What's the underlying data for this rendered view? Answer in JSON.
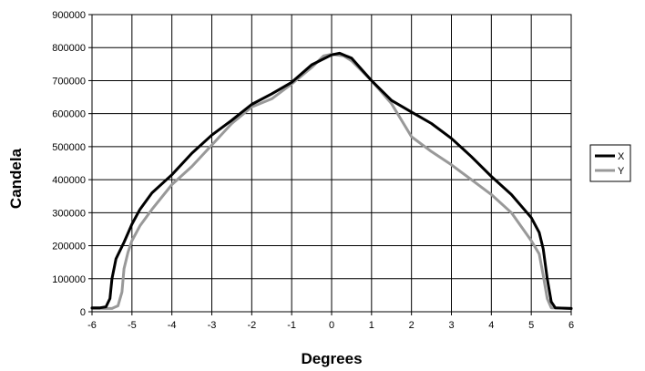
{
  "chart_data": {
    "type": "line",
    "xlabel": "Degrees",
    "ylabel": "Candela",
    "xlim": [
      -6,
      6
    ],
    "ylim": [
      0,
      900000
    ],
    "xticks": [
      "-6",
      "-5",
      "-4",
      "-3",
      "-2",
      "-1",
      "0",
      "1",
      "2",
      "3",
      "4",
      "5",
      "6"
    ],
    "yticks": [
      "0",
      "100000",
      "200000",
      "300000",
      "400000",
      "500000",
      "600000",
      "700000",
      "800000",
      "900000"
    ],
    "grid": true,
    "legend_position": "right",
    "series": [
      {
        "name": "X",
        "color": "#000000",
        "points": [
          [
            -6.0,
            12000
          ],
          [
            -5.8,
            12000
          ],
          [
            -5.65,
            15000
          ],
          [
            -5.55,
            40000
          ],
          [
            -5.5,
            100000
          ],
          [
            -5.4,
            160000
          ],
          [
            -5.2,
            210000
          ],
          [
            -5.0,
            265000
          ],
          [
            -4.8,
            310000
          ],
          [
            -4.5,
            360000
          ],
          [
            -4.0,
            415000
          ],
          [
            -3.5,
            480000
          ],
          [
            -3.0,
            535000
          ],
          [
            -2.5,
            580000
          ],
          [
            -2.0,
            628000
          ],
          [
            -1.5,
            660000
          ],
          [
            -1.0,
            695000
          ],
          [
            -0.5,
            748000
          ],
          [
            0.0,
            778000
          ],
          [
            0.2,
            783000
          ],
          [
            0.5,
            768000
          ],
          [
            1.0,
            700000
          ],
          [
            1.5,
            640000
          ],
          [
            2.0,
            605000
          ],
          [
            2.5,
            570000
          ],
          [
            3.0,
            525000
          ],
          [
            3.5,
            470000
          ],
          [
            4.0,
            410000
          ],
          [
            4.5,
            355000
          ],
          [
            5.0,
            285000
          ],
          [
            5.2,
            240000
          ],
          [
            5.3,
            190000
          ],
          [
            5.4,
            100000
          ],
          [
            5.5,
            30000
          ],
          [
            5.6,
            12000
          ],
          [
            6.0,
            10000
          ]
        ]
      },
      {
        "name": "Y",
        "color": "#999999",
        "points": [
          [
            -6.0,
            10000
          ],
          [
            -5.5,
            10000
          ],
          [
            -5.35,
            18000
          ],
          [
            -5.25,
            60000
          ],
          [
            -5.2,
            130000
          ],
          [
            -5.1,
            180000
          ],
          [
            -5.0,
            215000
          ],
          [
            -4.8,
            260000
          ],
          [
            -4.5,
            310000
          ],
          [
            -4.0,
            385000
          ],
          [
            -3.5,
            440000
          ],
          [
            -3.0,
            505000
          ],
          [
            -2.5,
            570000
          ],
          [
            -2.0,
            620000
          ],
          [
            -1.5,
            645000
          ],
          [
            -1.0,
            690000
          ],
          [
            -0.5,
            740000
          ],
          [
            -0.2,
            775000
          ],
          [
            0.0,
            780000
          ],
          [
            0.3,
            775000
          ],
          [
            0.5,
            760000
          ],
          [
            1.0,
            700000
          ],
          [
            1.5,
            630000
          ],
          [
            2.0,
            530000
          ],
          [
            2.5,
            485000
          ],
          [
            3.0,
            445000
          ],
          [
            3.5,
            400000
          ],
          [
            4.0,
            355000
          ],
          [
            4.5,
            300000
          ],
          [
            5.0,
            215000
          ],
          [
            5.2,
            175000
          ],
          [
            5.3,
            110000
          ],
          [
            5.4,
            40000
          ],
          [
            5.5,
            12000
          ],
          [
            6.0,
            10000
          ]
        ]
      }
    ]
  }
}
